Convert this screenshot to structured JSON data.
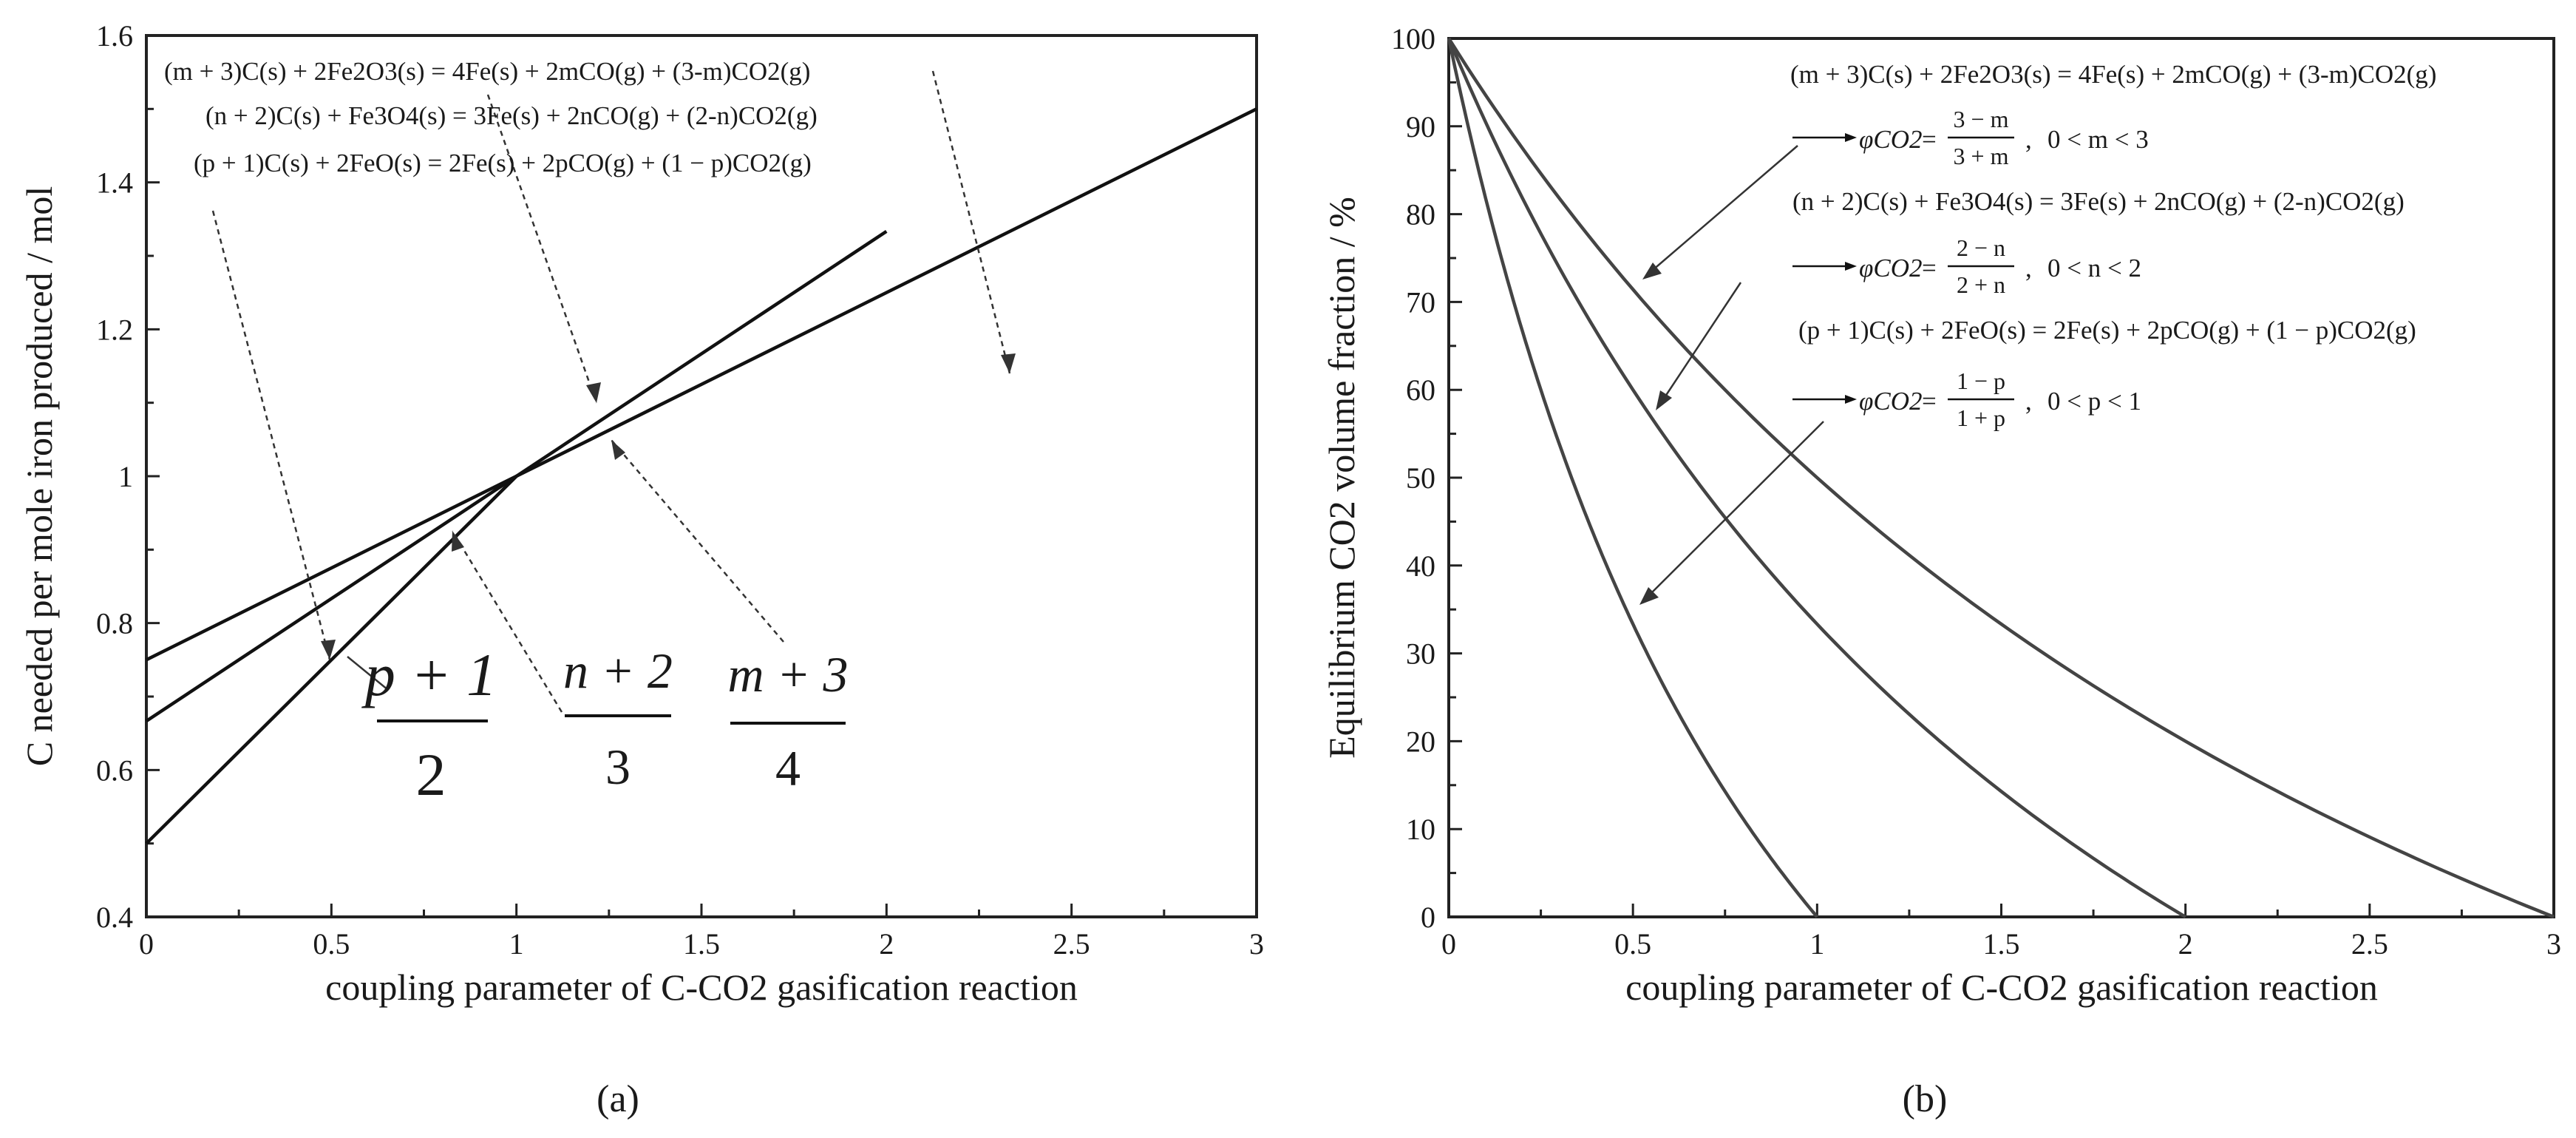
{
  "chart_data": [
    {
      "type": "line",
      "panel_label": "(a)",
      "xlabel": "coupling parameter of C-CO2 gasification reaction",
      "ylabel": "C needed per mole iron produced / mol",
      "xlim": [
        0,
        3
      ],
      "ylim": [
        0.4,
        1.6
      ],
      "x_ticks": [
        "0",
        "0.5",
        "1",
        "1.5",
        "2",
        "2.5",
        "3"
      ],
      "y_ticks": [
        "0.4",
        "0.6",
        "0.8",
        "1",
        "1.2",
        "1.4",
        "1.6"
      ],
      "series": [
        {
          "name": "(p+1)/2",
          "points": [
            [
              0,
              0.5
            ],
            [
              1,
              1.0
            ]
          ]
        },
        {
          "name": "(n+2)/3",
          "points": [
            [
              0,
              0.6667
            ],
            [
              2,
              1.3333
            ]
          ]
        },
        {
          "name": "(m+3)/4",
          "points": [
            [
              0,
              0.75
            ],
            [
              3,
              1.5
            ]
          ]
        }
      ],
      "equations": [
        "(m + 3)C(s) + 2Fe2O3(s) = 4Fe(s) + 2mCO(g) + (3-m)CO2(g)",
        "(n + 2)C(s) + Fe3O4(s) = 3Fe(s) + 2nCO(g) + (2-n)CO2(g)",
        "(p + 1)C(s) + 2FeO(s) = 2Fe(s) + 2pCO(g) + (1 − p)CO2(g)"
      ],
      "fraction_labels": [
        {
          "num": "p + 1",
          "den": "2"
        },
        {
          "num": "n + 2",
          "den": "3"
        },
        {
          "num": "m + 3",
          "den": "4"
        }
      ]
    },
    {
      "type": "line",
      "panel_label": "(b)",
      "xlabel": "coupling parameter of C-CO2 gasification reaction",
      "ylabel": "Equilibrium CO2 volume fraction / %",
      "xlim": [
        0,
        3
      ],
      "ylim": [
        0,
        100
      ],
      "x_ticks": [
        "0",
        "0.5",
        "1",
        "1.5",
        "2",
        "2.5",
        "3"
      ],
      "y_ticks": [
        "0",
        "10",
        "20",
        "30",
        "40",
        "50",
        "60",
        "70",
        "80",
        "90",
        "100"
      ],
      "series": [
        {
          "name": "φCO2 = (1−p)/(1+p)",
          "formula": "(1-x)/(1+x)",
          "domain": [
            0,
            1
          ]
        },
        {
          "name": "φCO2 = (2−n)/(2+n)",
          "formula": "(2-x)/(2+x)",
          "domain": [
            0,
            2
          ]
        },
        {
          "name": "φCO2 = (3−m)/(3+m)",
          "formula": "(3-x)/(3+x)",
          "domain": [
            0,
            3
          ]
        }
      ],
      "equations": [
        "(m + 3)C(s) + 2Fe2O3(s) = 4Fe(s) + 2mCO(g) + (3-m)CO2(g)",
        "(n + 2)C(s) + Fe3O4(s) = 3Fe(s) + 2nCO(g) + (2-n)CO2(g)",
        "(p + 1)C(s) + 2FeO(s) = 2Fe(s) + 2pCO(g) + (1 − p)CO2(g)"
      ],
      "phi_labels": [
        {
          "symbol": "φCO2",
          "num": "3 − m",
          "den": "3 + m",
          "range": "0 < m < 3"
        },
        {
          "symbol": "φCO2",
          "num": "2 − n",
          "den": "2 + n",
          "range": "0 < n < 2"
        },
        {
          "symbol": "φCO2",
          "num": "1 − p",
          "den": "1 + p",
          "range": "0 < p < 1"
        }
      ]
    }
  ],
  "colors": {
    "line_a": "#111111",
    "line_b": "#444444",
    "axis": "#222222",
    "text": "#1a1a1a"
  }
}
